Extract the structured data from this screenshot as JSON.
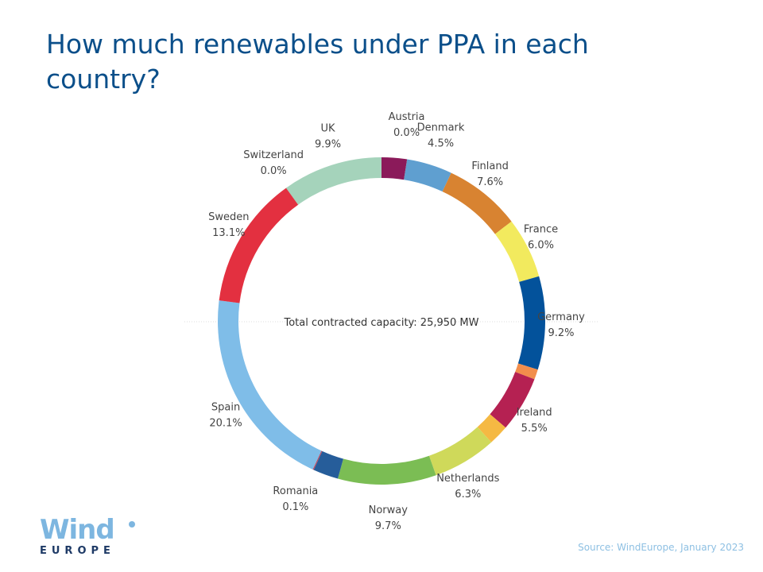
{
  "title": "How much renewables under PPA in each country?",
  "chart_data": {
    "type": "pie",
    "style": "donut",
    "title": "How much renewables under PPA in each country?",
    "center_label": "Total contracted capacity: 25,950 MW",
    "start": "top",
    "direction": "clockwise",
    "slices": [
      {
        "name": "",
        "value": 2.5,
        "color": "#8b1a5a",
        "label": false
      },
      {
        "name": "Austria",
        "value": 0.0,
        "color": "#e8834a",
        "label": true,
        "display": "0.0%"
      },
      {
        "name": "Denmark",
        "value": 4.5,
        "color": "#5f9fd0",
        "label": true,
        "display": "4.5%"
      },
      {
        "name": "Finland",
        "value": 7.6,
        "color": "#d88331",
        "label": true,
        "display": "7.6%"
      },
      {
        "name": "France",
        "value": 6.0,
        "color": "#f2ea5e",
        "label": true,
        "display": "6.0%"
      },
      {
        "name": "Germany",
        "value": 9.2,
        "color": "#03529b",
        "label": true,
        "display": "9.2%"
      },
      {
        "name": "",
        "value": 1.0,
        "color": "#f28e4c",
        "label": false
      },
      {
        "name": "Ireland",
        "value": 5.5,
        "color": "#b52152",
        "label": true,
        "display": "5.5%"
      },
      {
        "name": "",
        "value": 2.0,
        "color": "#f5b943",
        "label": false
      },
      {
        "name": "Netherlands",
        "value": 6.3,
        "color": "#cfd95a",
        "label": true,
        "display": "6.3%"
      },
      {
        "name": "Norway",
        "value": 9.7,
        "color": "#7bbd54",
        "label": true,
        "display": "9.7%"
      },
      {
        "name": "",
        "value": 2.5,
        "color": "#265d9a",
        "label": false
      },
      {
        "name": "Romania",
        "value": 0.1,
        "color": "#c0485e",
        "label": true,
        "display": "0.1%"
      },
      {
        "name": "Spain",
        "value": 20.1,
        "color": "#7fbde8",
        "label": true,
        "display": "20.1%"
      },
      {
        "name": "Sweden",
        "value": 13.1,
        "color": "#e33040",
        "label": true,
        "display": "13.1%"
      },
      {
        "name": "Switzerland",
        "value": 0.0,
        "color": "#e33040",
        "label": true,
        "display": "0.0%"
      },
      {
        "name": "UK",
        "value": 9.9,
        "color": "#a5d3bb",
        "label": true,
        "display": "9.9%"
      }
    ]
  },
  "logo": {
    "top": "Wind",
    "bottom": "EUROPE"
  },
  "source": "Source: WindEurope, January 2023"
}
